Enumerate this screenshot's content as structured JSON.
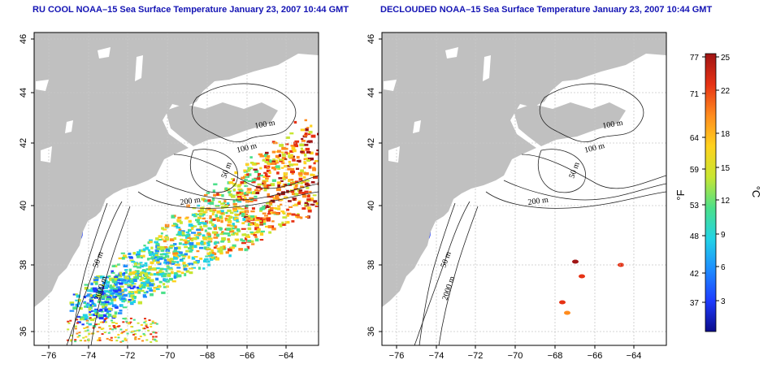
{
  "titles": {
    "left": "RU COOL NOAA–15 Sea Surface Temperature January 23, 2007 10:44 GMT",
    "right": "DECLOUDED NOAA–15 Sea Surface Temperature January 23, 2007 10:44 GMT"
  },
  "axes": {
    "x_ticks": [
      "−76",
      "−74",
      "−72",
      "−70",
      "−68",
      "−66",
      "−64"
    ],
    "y_ticks": [
      "36",
      "38",
      "40",
      "42",
      "44",
      "46"
    ]
  },
  "contours": {
    "depth_labels": [
      "100 m",
      "100 m",
      "50 m",
      "200 m",
      "50 m",
      "2000 m"
    ]
  },
  "colorbar": {
    "fahrenheit_ticks": [
      "77",
      "71",
      "64",
      "59",
      "53",
      "48",
      "42",
      "37"
    ],
    "celsius_ticks": [
      "25",
      "22",
      "18",
      "15",
      "12",
      "9",
      "6",
      "3"
    ],
    "unit_f": "°F",
    "unit_c": "°C",
    "colors": [
      "#0b0b8a",
      "#1e3cff",
      "#1e8cff",
      "#22d3e6",
      "#4be08a",
      "#c8e632",
      "#ffd21e",
      "#ff8c1e",
      "#e63214",
      "#a01414"
    ]
  },
  "colors": {
    "land": "#c0c0c0",
    "title": "#1414b4"
  }
}
